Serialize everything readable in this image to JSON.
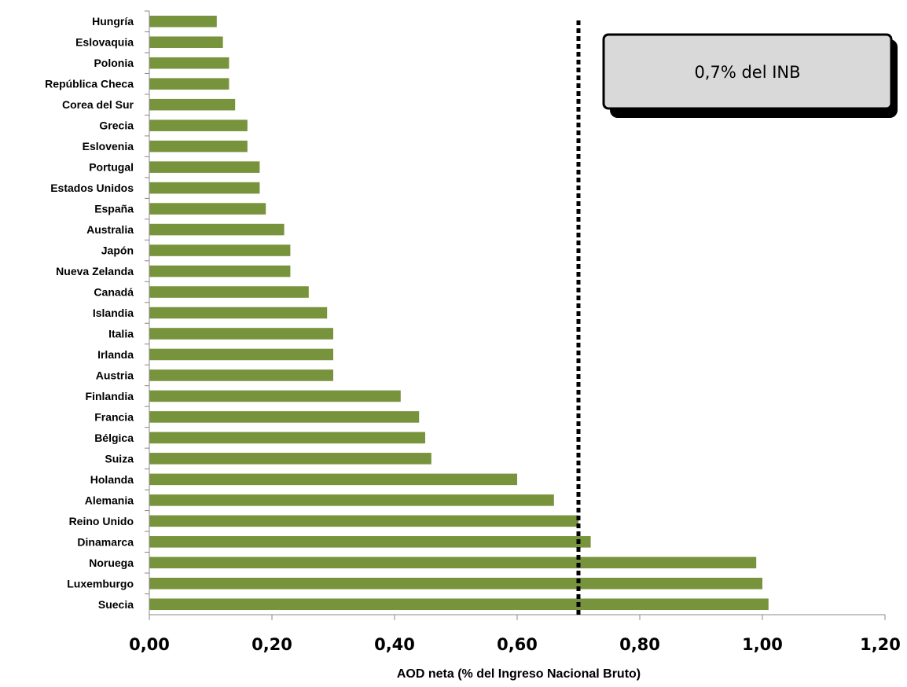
{
  "chart_data": {
    "type": "bar",
    "orientation": "horizontal",
    "categories": [
      "Hungría",
      "Eslovaquia",
      "Polonia",
      "República Checa",
      "Corea del Sur",
      "Grecia",
      "Eslovenia",
      "Portugal",
      "Estados Unidos",
      "España",
      "Australia",
      "Japón",
      "Nueva Zelanda",
      "Canadá",
      "Islandia",
      "Italia",
      "Irlanda",
      "Austria",
      "Finlandia",
      "Francia",
      "Bélgica",
      "Suiza",
      "Holanda",
      "Alemania",
      "Reino Unido",
      "Dinamarca",
      "Noruega",
      "Luxemburgo",
      "Suecia"
    ],
    "values": [
      0.11,
      0.12,
      0.13,
      0.13,
      0.14,
      0.16,
      0.16,
      0.18,
      0.18,
      0.19,
      0.22,
      0.23,
      0.23,
      0.26,
      0.29,
      0.3,
      0.3,
      0.3,
      0.41,
      0.44,
      0.45,
      0.46,
      0.6,
      0.66,
      0.7,
      0.72,
      0.99,
      1.0,
      1.01
    ],
    "xlabel": "AOD neta (% del Ingreso Nacional Bruto)",
    "ylabel": "",
    "xlim": [
      0,
      1.2
    ],
    "xticks": [
      "0,00",
      "0,20",
      "0,40",
      "0,60",
      "0,80",
      "1,00",
      "1,20"
    ],
    "grid": false,
    "bar_color": "#77933c",
    "reference_line": {
      "value": 0.7,
      "style": "dotted",
      "color": "#000000"
    },
    "annotation": "0,7% del INB"
  }
}
